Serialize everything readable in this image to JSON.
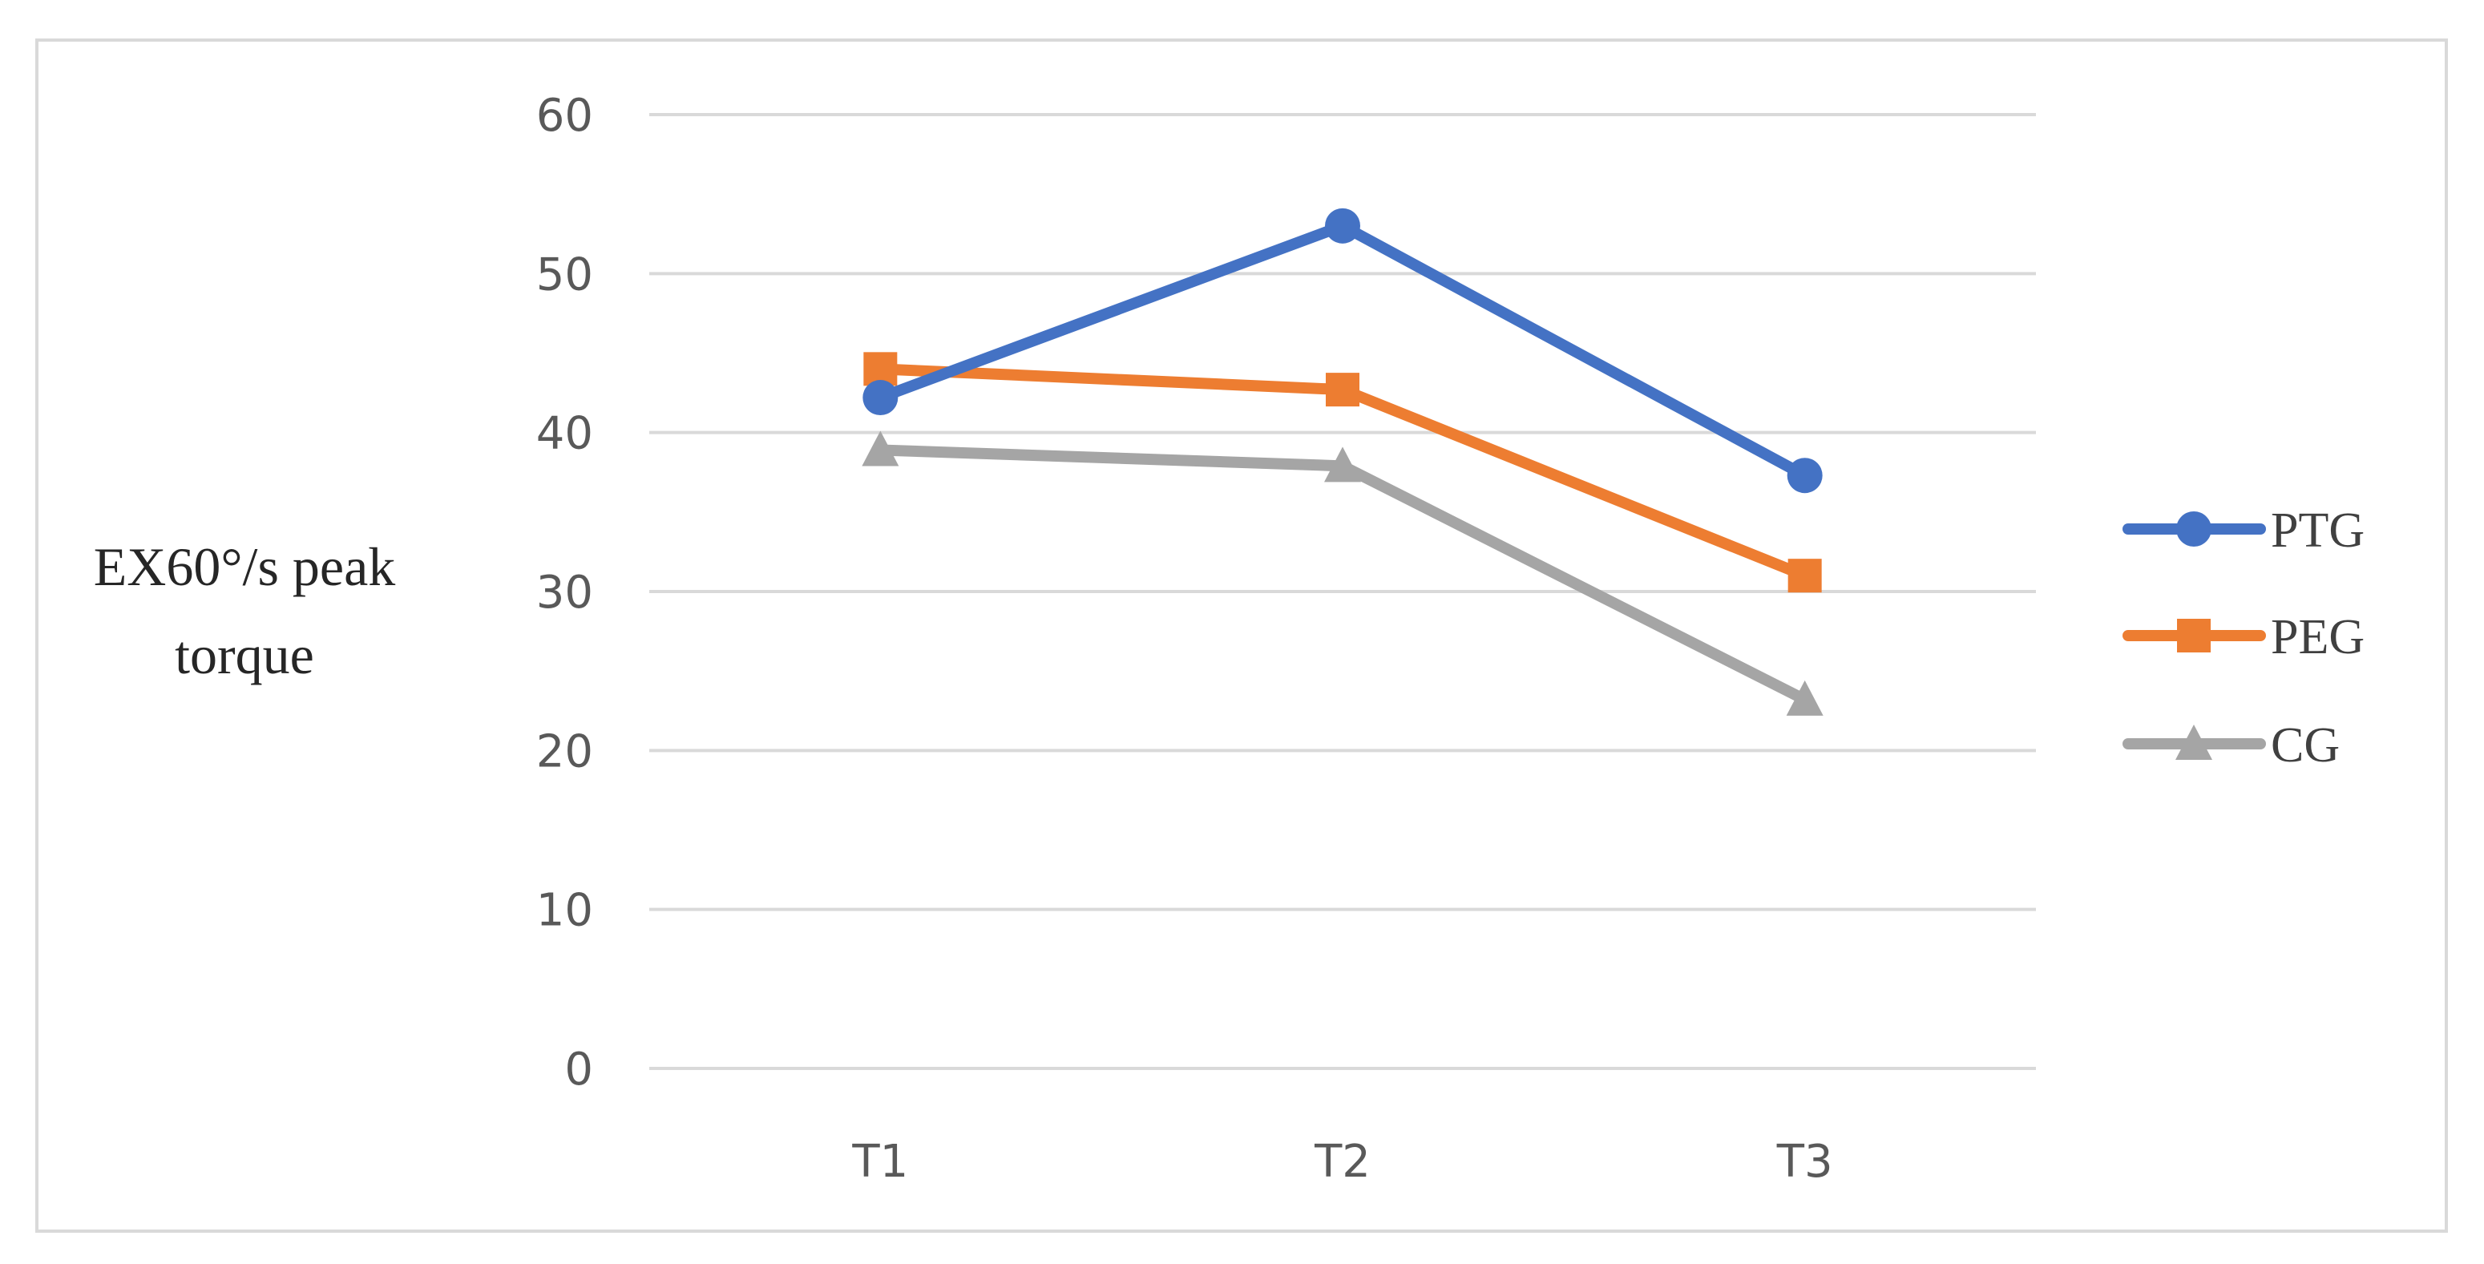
{
  "chart_data": {
    "type": "line",
    "title": "",
    "xlabel": "",
    "ylabel": [
      "EX60°/s peak",
      "torque"
    ],
    "categories": [
      "T1",
      "T2",
      "T3"
    ],
    "yticks": [
      "0",
      "10",
      "20",
      "30",
      "40",
      "50",
      "60"
    ],
    "ylim": [
      0,
      60
    ],
    "grid": true,
    "legend_position": "right",
    "series": [
      {
        "name": "PTG",
        "values": [
          42.2,
          53.0,
          37.3
        ],
        "color": "#4472c4",
        "marker": "circle"
      },
      {
        "name": "PEG",
        "values": [
          44.0,
          42.7,
          31.0
        ],
        "color": "#ed7d31",
        "marker": "square"
      },
      {
        "name": "CG",
        "values": [
          38.9,
          37.9,
          23.2
        ],
        "color": "#a5a5a5",
        "marker": "triangle"
      }
    ]
  }
}
